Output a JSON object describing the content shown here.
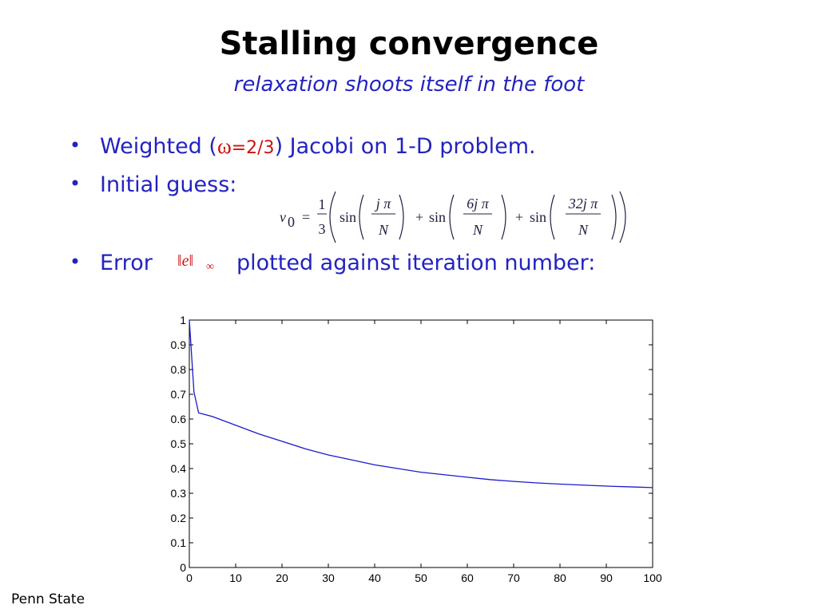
{
  "title": "Stalling convergence",
  "subtitle": "relaxation shoots itself in the foot",
  "bullets": [
    {
      "before": "Weighted (",
      "omega": "ω",
      "weight": "=2/3",
      "after": ") Jacobi on 1-D problem."
    },
    {
      "text": "Initial guess:"
    },
    {
      "before": "Error",
      "norm": "‖e‖",
      "norm_sub": "∞",
      "after": "plotted against iteration number:"
    }
  ],
  "formula": {
    "lhs": "v",
    "lhs_sub": "0",
    "eq": "=",
    "num": "1",
    "den": "3",
    "terms": [
      {
        "fn": "sin",
        "num": "j π",
        "den": "N"
      },
      {
        "op": "+",
        "fn": "sin",
        "num": "6j π",
        "den": "N"
      },
      {
        "op": "+",
        "fn": "sin",
        "num": "32j π",
        "den": "N"
      }
    ]
  },
  "footer": "Penn State",
  "chart_data": {
    "type": "line",
    "x": [
      0,
      1,
      2,
      5,
      10,
      15,
      20,
      25,
      30,
      35,
      40,
      45,
      50,
      55,
      60,
      65,
      70,
      75,
      80,
      85,
      90,
      95,
      100
    ],
    "series": [
      {
        "color": "#1a1acc",
        "values": [
          1.0,
          0.71,
          0.625,
          0.61,
          0.575,
          0.54,
          0.51,
          0.48,
          0.455,
          0.435,
          0.415,
          0.4,
          0.385,
          0.375,
          0.365,
          0.355,
          0.348,
          0.342,
          0.337,
          0.333,
          0.329,
          0.326,
          0.323
        ]
      }
    ],
    "xlim": [
      0,
      100
    ],
    "xticks": [
      0,
      10,
      20,
      30,
      40,
      50,
      60,
      70,
      80,
      90,
      100
    ],
    "ylim": [
      0,
      1
    ],
    "yticks": [
      0,
      0.1,
      0.2,
      0.3,
      0.4,
      0.5,
      0.6,
      0.7,
      0.8,
      0.9,
      1
    ],
    "grid": false
  }
}
